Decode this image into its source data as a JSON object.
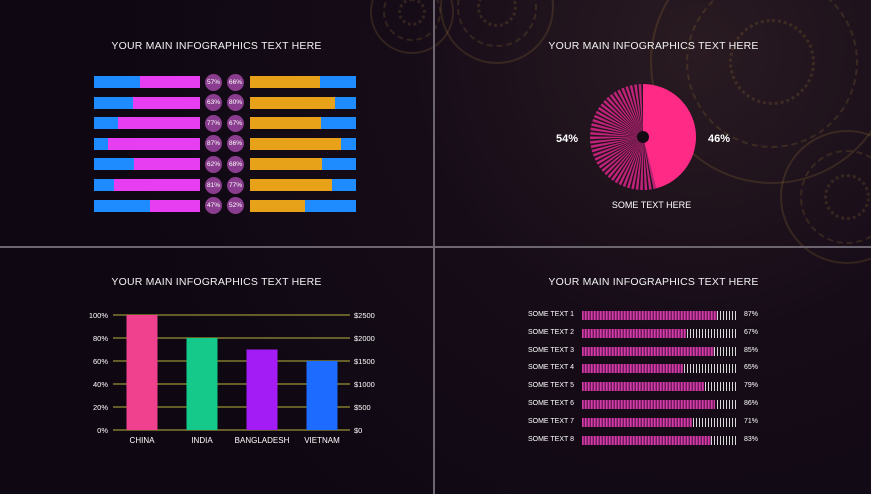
{
  "titles": {
    "q1": "YOUR MAIN INFOGRAPHICS TEXT HERE",
    "q2": "YOUR MAIN INFOGRAPHICS TEXT HERE",
    "q3": "YOUR MAIN INFOGRAPHICS TEXT HERE",
    "q4": "YOUR MAIN INFOGRAPHICS TEXT HERE"
  },
  "colors": {
    "blue": "#1e8bff",
    "magenta": "#e63ef0",
    "orange": "#e8a21a",
    "pink": "#ff2a86",
    "pie_dark": "#c0227a",
    "china": "#f0418e",
    "india": "#15c98a",
    "bangladesh": "#a41cf5",
    "vietnam": "#1e6cff",
    "hbar": "#d63aa8"
  },
  "chart_data": [
    {
      "type": "bar",
      "orientation": "horizontal-stacked-pairs",
      "left_values": [
        57,
        63,
        77,
        87,
        62,
        81,
        47
      ],
      "right_values": [
        66,
        80,
        67,
        86,
        68,
        77,
        52
      ],
      "left_labels": [
        "57%",
        "63%",
        "77%",
        "87%",
        "62%",
        "81%",
        "47%"
      ],
      "right_labels": [
        "66%",
        "80%",
        "67%",
        "86%",
        "68%",
        "77%",
        "52%"
      ]
    },
    {
      "type": "pie",
      "slices": [
        {
          "label": "54%",
          "value": 54
        },
        {
          "label": "46%",
          "value": 46
        }
      ],
      "caption": "SOME TEXT HERE"
    },
    {
      "type": "bar",
      "categories": [
        "CHINA",
        "INDIA",
        "BANGLADESH",
        "VIETNAM"
      ],
      "values": [
        100,
        80,
        70,
        60
      ],
      "ylim": [
        0,
        100
      ],
      "left_ticks": [
        "0%",
        "20%",
        "40%",
        "60%",
        "80%",
        "100%"
      ],
      "right_ticks": [
        "$0",
        "$500",
        "$1000",
        "$1500",
        "$2000",
        "$2500"
      ]
    },
    {
      "type": "bar",
      "orientation": "horizontal",
      "categories": [
        "SOME TEXT 1",
        "SOME TEXT 2",
        "SOME TEXT 3",
        "SOME TEXT 4",
        "SOME TEXT 5",
        "SOME TEXT 6",
        "SOME TEXT 7",
        "SOME TEXT 8"
      ],
      "values": [
        87,
        67,
        85,
        65,
        79,
        86,
        71,
        83
      ],
      "value_labels": [
        "87%",
        "67%",
        "85%",
        "65%",
        "79%",
        "86%",
        "71%",
        "83%"
      ]
    }
  ]
}
